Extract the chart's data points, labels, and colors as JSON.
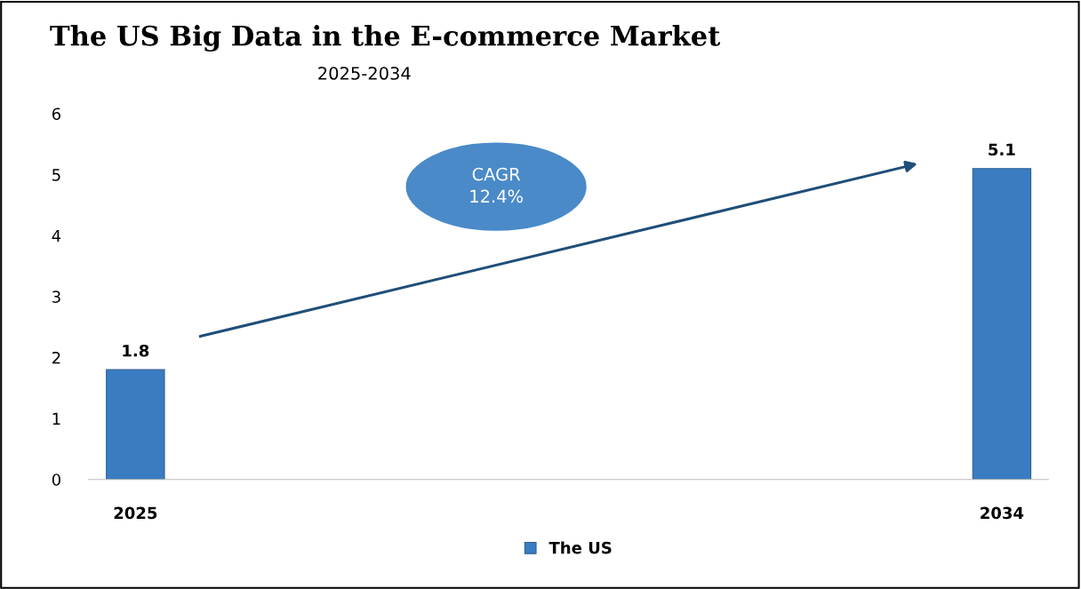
{
  "chart_data": {
    "type": "bar",
    "title": "The US Big Data in the E-commerce Market",
    "subtitle": "2025-2034",
    "categories": [
      "2025",
      "2034"
    ],
    "series": [
      {
        "name": "The US",
        "color": "#3a7cc2",
        "values": [
          1.8,
          5.1
        ]
      }
    ],
    "ylim": [
      0,
      6
    ],
    "yticks": [
      0,
      1,
      2,
      3,
      4,
      5,
      6
    ],
    "grid": false,
    "legend": "bottom",
    "data_labels": true,
    "annotations": [
      "CAGR\n12.4%"
    ]
  }
}
